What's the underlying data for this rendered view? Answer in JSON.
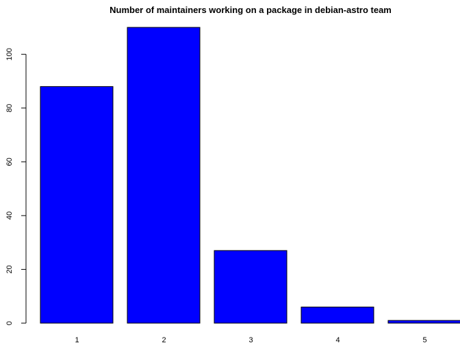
{
  "chart_data": {
    "type": "bar",
    "title": "Number of maintainers working on a package in debian-astro team",
    "xlabel": "",
    "ylabel": "",
    "categories": [
      "1",
      "2",
      "3",
      "4",
      "5"
    ],
    "values": [
      88,
      110,
      27,
      6,
      1
    ],
    "ylim": [
      0,
      110
    ],
    "yticks": [
      0,
      20,
      40,
      60,
      80,
      100
    ],
    "bar_color": "#0000ff",
    "grid": false,
    "legend": "none"
  }
}
